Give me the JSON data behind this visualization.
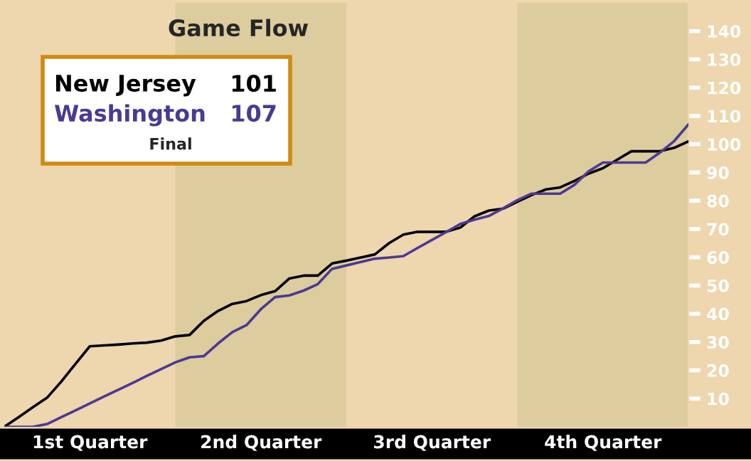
{
  "chart_data": {
    "type": "line",
    "title": "Game Flow",
    "categories": [
      null,
      null,
      null,
      null,
      null,
      null,
      "1st Quarter",
      null,
      null,
      null,
      null,
      null,
      null,
      null,
      null,
      null,
      null,
      null,
      "2nd Quarter",
      null,
      null,
      null,
      null,
      null,
      null,
      null,
      null,
      null,
      null,
      null,
      "3rd Quarter",
      null,
      null,
      null,
      null,
      null,
      null,
      null,
      null,
      null,
      null,
      null,
      "4th Quarter",
      null,
      null,
      null,
      null,
      null,
      null
    ],
    "ylim": [
      0,
      150
    ],
    "yticks": [
      10,
      20,
      30,
      40,
      50,
      60,
      70,
      80,
      90,
      100,
      110,
      120,
      130,
      140
    ],
    "grid": false,
    "marker": "none",
    "line_style": "solid",
    "annotations": [
      "101",
      "107",
      "Final"
    ],
    "series": [
      {
        "name": "New Jersey",
        "color": "#000000",
        "values": [
          0,
          3.4,
          6.9,
          10.3,
          16,
          22.3,
          28.5,
          28.8,
          29.1,
          29.5,
          29.8,
          30.5,
          32,
          32.5,
          37.5,
          41,
          43.5,
          44.5,
          46.6,
          48,
          52.5,
          53.5,
          53.5,
          57.8,
          58.8,
          59.9,
          61,
          65,
          68,
          69,
          69,
          69,
          70.5,
          74.5,
          76.5,
          77.2,
          79.6,
          82,
          84,
          84.7,
          87,
          89.6,
          91.5,
          94.5,
          97.5,
          97.5,
          97.5,
          98.7,
          101
        ]
      },
      {
        "name": "Washington",
        "color": "#4a3a94",
        "values": [
          0,
          0,
          0,
          1,
          3.4,
          5.8,
          8.3,
          10.7,
          13.1,
          15.5,
          18,
          20.4,
          22.8,
          24.6,
          25,
          29.5,
          33.5,
          36,
          41.6,
          45.9,
          46.5,
          48.2,
          50.5,
          55.9,
          57.1,
          58.3,
          59.5,
          59.9,
          60.4,
          63.3,
          66.1,
          68.9,
          71.8,
          73.3,
          74.6,
          77.3,
          80.2,
          82.5,
          82.5,
          82.5,
          85.6,
          90.4,
          93.5,
          93.5,
          93.5,
          93.5,
          97,
          101.1,
          107
        ]
      }
    ]
  }
}
